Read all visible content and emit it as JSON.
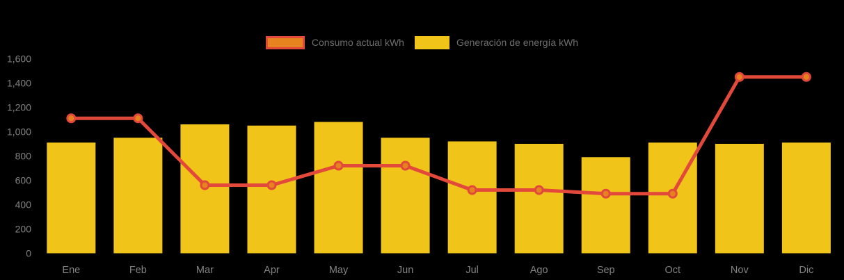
{
  "colors": {
    "background": "#000000",
    "bar_fill": "#F0C419",
    "line_stroke": "#E2493B",
    "point_fill": "#E6831E",
    "axis_text": "#828282",
    "legend_text": "#6F6F6F"
  },
  "legend": {
    "position": "top-center",
    "items": [
      {
        "label": "Consumo actual kWh",
        "swatch": "orange-fill-red-border"
      },
      {
        "label": "Generación de energía kWh",
        "swatch": "yellow-fill"
      }
    ]
  },
  "chart_data": {
    "type": "bar",
    "title": "",
    "xlabel": "",
    "ylabel": "",
    "categories": [
      "Ene",
      "Feb",
      "Mar",
      "Apr",
      "May",
      "Jun",
      "Jul",
      "Ago",
      "Sep",
      "Oct",
      "Nov",
      "Dic"
    ],
    "series": [
      {
        "name": "Consumo actual kWh",
        "type": "line",
        "color": "#E2493B",
        "point_fill": "#E6831E",
        "values": [
          1110,
          1110,
          560,
          560,
          720,
          720,
          520,
          520,
          490,
          490,
          1450,
          1450
        ]
      },
      {
        "name": "Generación de energía kWh",
        "type": "bar",
        "color": "#F0C419",
        "values": [
          910,
          950,
          1060,
          1050,
          1080,
          950,
          920,
          900,
          790,
          910,
          900,
          910
        ]
      }
    ],
    "ylim": [
      0,
      1600
    ],
    "ytick_step": 200,
    "ytick_labels": [
      "0",
      "200",
      "400",
      "600",
      "800",
      "1,000",
      "1,200",
      "1,400",
      "1,600"
    ],
    "grid": false,
    "legend_position": "top-center"
  }
}
